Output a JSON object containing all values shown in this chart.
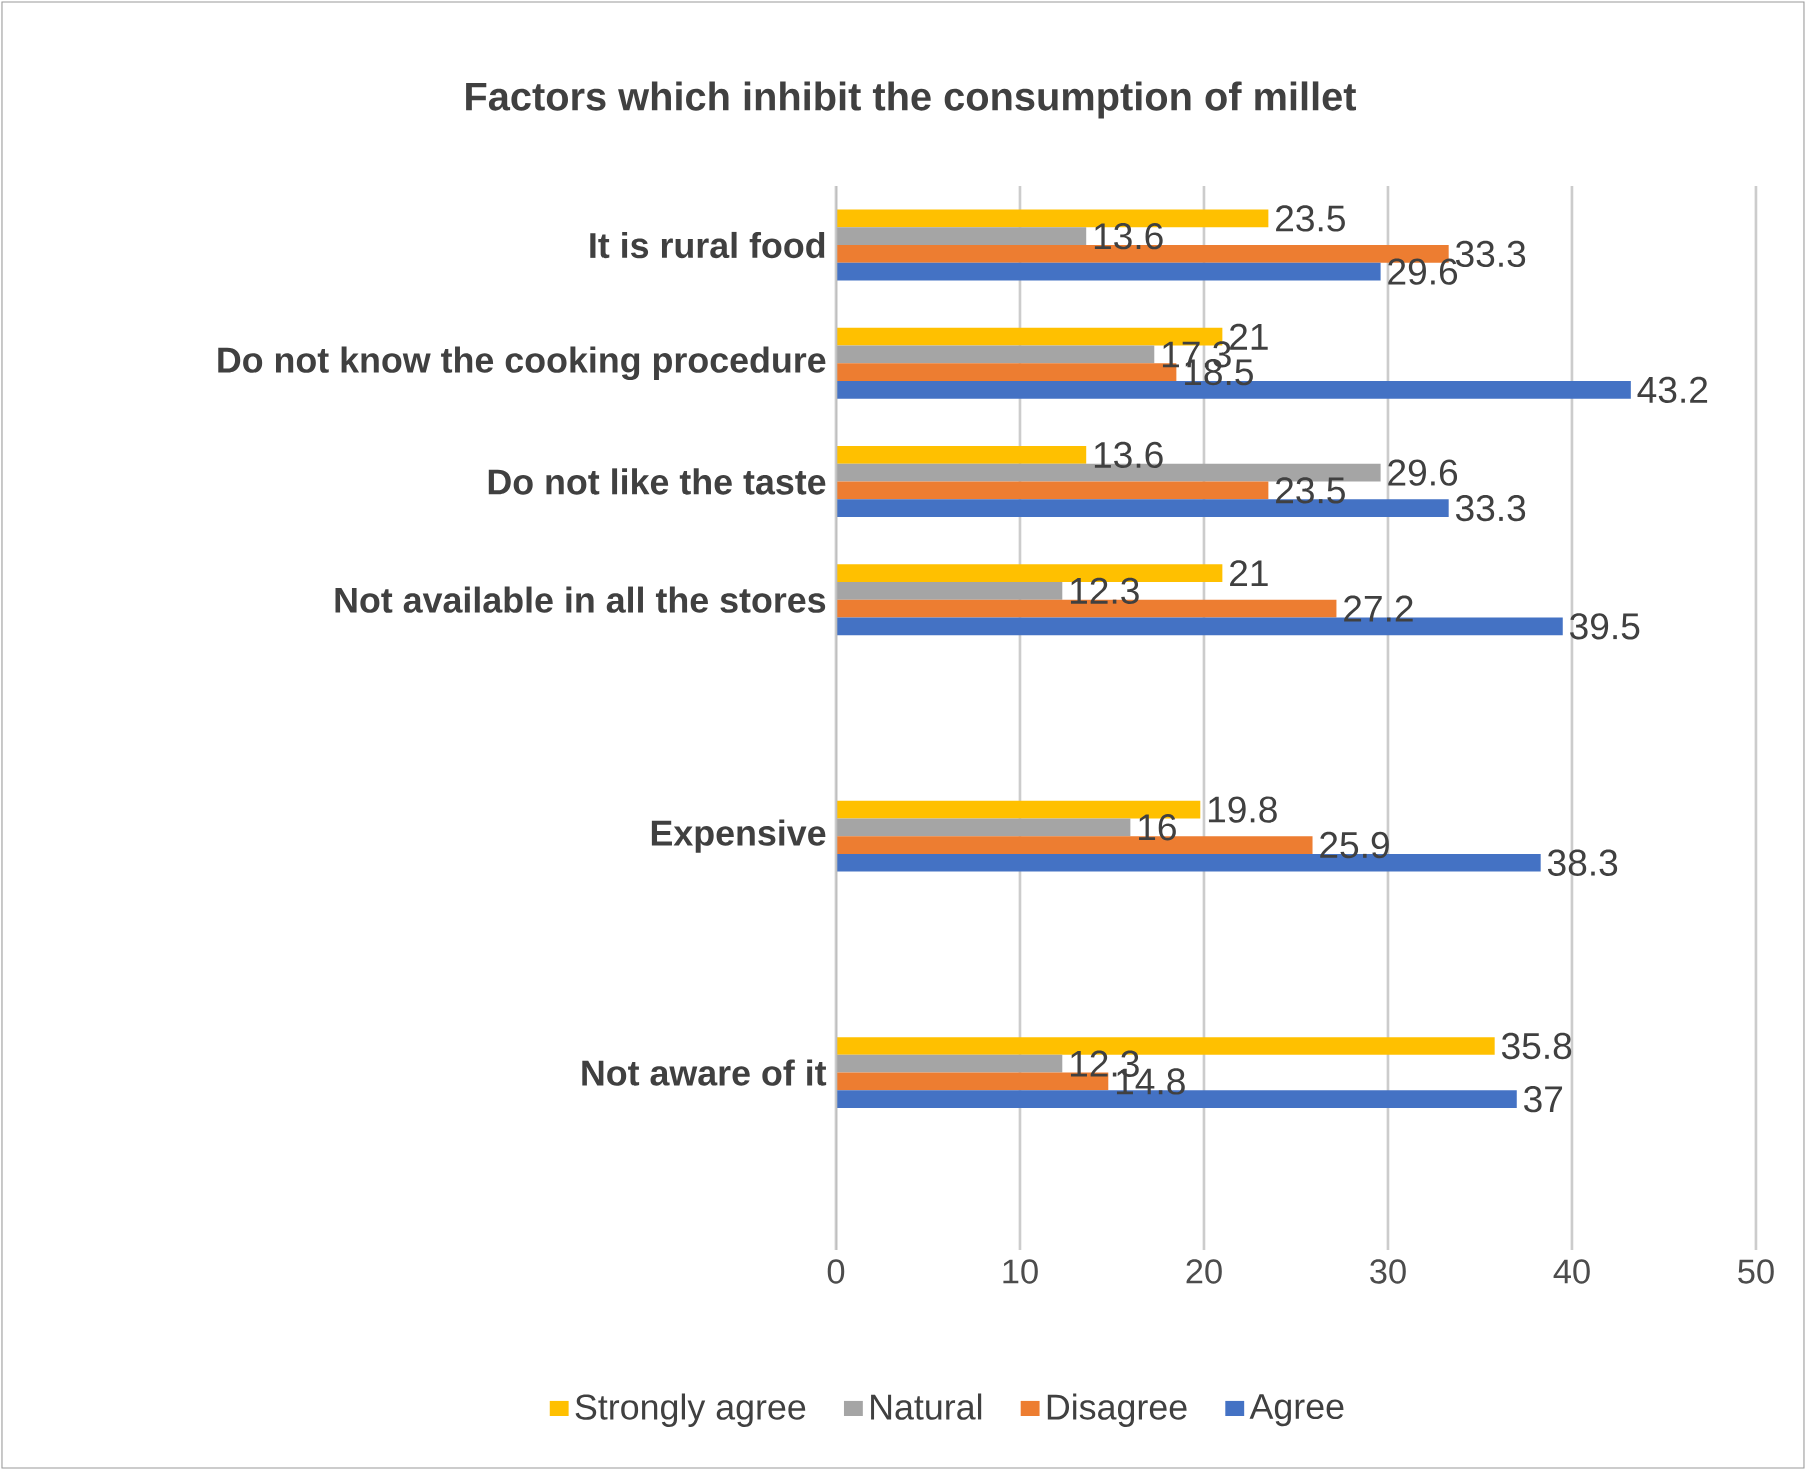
{
  "chart_data": {
    "type": "bar",
    "orientation": "horizontal",
    "title": "Factors which inhibit the consumption of millet",
    "categories": [
      "It is rural food",
      "Do not know the cooking procedure",
      "Do not like the taste",
      "Not available in all the stores",
      null,
      "Expensive",
      null,
      "Not aware of it",
      null
    ],
    "series": [
      {
        "name": "Strongly agree",
        "color": "#ffc000",
        "values": [
          23.5,
          21,
          13.6,
          21,
          null,
          19.8,
          null,
          35.8,
          null
        ]
      },
      {
        "name": "Natural",
        "color": "#a5a5a5",
        "values": [
          13.6,
          17.3,
          29.6,
          12.3,
          null,
          16,
          null,
          12.3,
          null
        ]
      },
      {
        "name": "Disagree",
        "color": "#ed7d31",
        "values": [
          33.3,
          18.5,
          23.5,
          27.2,
          null,
          25.9,
          null,
          14.8,
          null
        ]
      },
      {
        "name": "Agree",
        "color": "#4472c4",
        "values": [
          29.6,
          43.2,
          33.3,
          39.5,
          null,
          38.3,
          null,
          37,
          null
        ]
      }
    ],
    "xlim": [
      0,
      50
    ],
    "xticks": [
      0,
      10,
      20,
      30,
      40,
      50
    ],
    "grid": "x",
    "legend": "bottom",
    "data_labels": true
  }
}
